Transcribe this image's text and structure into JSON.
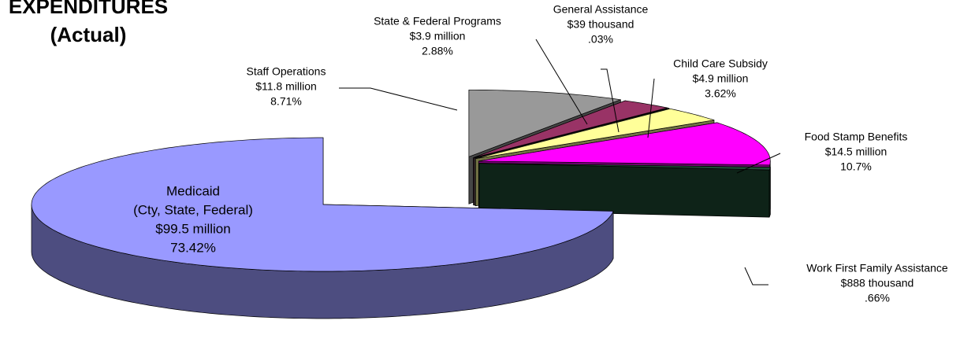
{
  "chart_data": {
    "type": "pie",
    "title": [
      "EXPENDITURES",
      "(Actual)"
    ],
    "categories": [
      [
        "Staff Operations"
      ],
      [
        "State & Federal Programs"
      ],
      [
        "General Assistance"
      ],
      [
        "Child Care Subsidy"
      ],
      [
        "Food Stamp Benefits"
      ],
      [
        "Work First Family Assistance"
      ],
      [
        "Medicaid",
        "(Cty, State, Federal)"
      ]
    ],
    "amounts": [
      "$11.8 million",
      "$3.9 million",
      "$39 thousand",
      "$4.9 million",
      "$14.5 million",
      "$888 thousand",
      "$99.5 million"
    ],
    "values": [
      8.71,
      2.88,
      0.03,
      3.62,
      10.7,
      0.66,
      73.42
    ],
    "value_labels": [
      "8.71%",
      "2.88%",
      ".03%",
      "3.62%",
      "10.7%",
      ".66%",
      "73.42%"
    ],
    "colors": [
      "#999999",
      "#993366",
      "#b0b09a",
      "#ffff99",
      "#ff00ff",
      "#1f4d36",
      "#9999ff"
    ]
  }
}
